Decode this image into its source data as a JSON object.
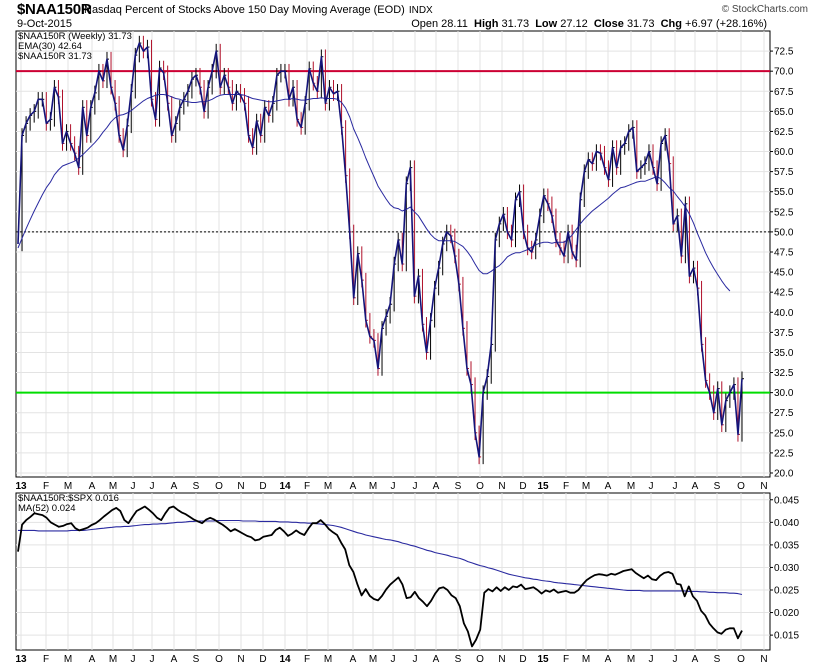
{
  "header": {
    "symbol": "$NAA150R",
    "description": "Nasdaq Percent of Stocks Above 150 Day Moving Average (EOD)",
    "exchange": "INDX",
    "date": "9-Oct-2015",
    "brand": "© StockCharts.com",
    "open_label": "Open",
    "open": "28.11",
    "high_label": "High",
    "high": "31.73",
    "low_label": "Low",
    "low": "27.12",
    "close_label": "Close",
    "close": "31.73",
    "chg_label": "Chg",
    "chg": "+6.97 (+28.16%)"
  },
  "colors": {
    "price_line": "#14147a",
    "ema_line": "#2a2aa0",
    "up_bar": "#000000",
    "down_bar": "#b0102a",
    "upper_line": "#cc0033",
    "lower_line": "#00dd00",
    "ratio_line": "#000000",
    "ma_line": "#2a2aa0",
    "grid": "#e3e3e3"
  },
  "chart_data": [
    {
      "type": "line",
      "legend": [
        {
          "label": "$NAA150R (Weekly) 31.73"
        },
        {
          "label": "EMA(30) 42.64"
        },
        {
          "label": "$NAA150R 31.73"
        }
      ],
      "y_ticks": [
        "72.5",
        "70.0",
        "67.5",
        "65.0",
        "62.5",
        "60.0",
        "57.5",
        "55.0",
        "52.5",
        "50.0",
        "47.5",
        "45.0",
        "42.5",
        "40.0",
        "37.5",
        "35.0",
        "32.5",
        "30.0",
        "27.5",
        "25.0",
        "22.5",
        "20.0"
      ],
      "ylim": [
        19.5,
        75
      ],
      "reference_lines": {
        "upper": 70,
        "middle": 50,
        "lower": 30
      },
      "x_ticks": [
        "13",
        "F",
        "M",
        "A",
        "M",
        "J",
        "J",
        "A",
        "S",
        "O",
        "N",
        "D",
        "14",
        "F",
        "M",
        "A",
        "M",
        "J",
        "J",
        "A",
        "S",
        "O",
        "N",
        "D",
        "15",
        "F",
        "M",
        "A",
        "M",
        "J",
        "J",
        "A",
        "S",
        "O",
        "N"
      ],
      "series": [
        {
          "name": "$NAA150R (Weekly)",
          "values": [
            48.5,
            62,
            63.5,
            64.5,
            65,
            66.5,
            66.5,
            63.5,
            64,
            68,
            66.8,
            61,
            62.5,
            61,
            59.8,
            58,
            65.5,
            62,
            65.5,
            67.3,
            70,
            68.8,
            71.5,
            68,
            66,
            62,
            60.2,
            63.2,
            67.5,
            72,
            73.5,
            72.5,
            73,
            66.5,
            64,
            70.4,
            69.8,
            66,
            62,
            63.5,
            65.5,
            66.5,
            67.5,
            69,
            69.5,
            68,
            65,
            68,
            70,
            72.5,
            68,
            69.5,
            68,
            66,
            67.5,
            67,
            66,
            62,
            60.5,
            63.8,
            62,
            65.5,
            64.5,
            66,
            69.5,
            70,
            70,
            66.5,
            68,
            64,
            63,
            66,
            70.3,
            68.5,
            67.5,
            71.8,
            66,
            68,
            67.2,
            67.5,
            63,
            57,
            50,
            41.8,
            47.3,
            44,
            39,
            37,
            36.5,
            33,
            38,
            39.5,
            41,
            46,
            49,
            46,
            56,
            58,
            42,
            44.5,
            38.5,
            35,
            39,
            43,
            45.5,
            48.5,
            50,
            49.5,
            47,
            43.5,
            38,
            33,
            31,
            25,
            22,
            30,
            32,
            36,
            49,
            51,
            52.2,
            50,
            49,
            54,
            55,
            50,
            48,
            47.5,
            49,
            52,
            54.5,
            53.5,
            52,
            49,
            48,
            47,
            50,
            47.5,
            46.5,
            54,
            57.5,
            59,
            58.5,
            60,
            59.8,
            58,
            56.5,
            60.5,
            58,
            60.5,
            61,
            62.5,
            63,
            57.5,
            58,
            58.5,
            60,
            58,
            56,
            61,
            62,
            58.5,
            51,
            52,
            47,
            53.5,
            44.5,
            45.5,
            43,
            36,
            31.5,
            30,
            27.5,
            30.5,
            26,
            29,
            30,
            31,
            24.8,
            31.73
          ]
        },
        {
          "name": "EMA(30)",
          "values": [
            48,
            49.2,
            50.4,
            51.5,
            52.6,
            53.6,
            54.6,
            55.5,
            56.2,
            57.1,
            57.7,
            58.2,
            58.4,
            58.6,
            58.8,
            59.2,
            59.6,
            60.1,
            60.6,
            61.1,
            61.7,
            62.4,
            63,
            63.7,
            64.2,
            64.5,
            64.6,
            64.8,
            65.1,
            65.5,
            65.9,
            66.3,
            66.6,
            66.8,
            67,
            67.1,
            67.1,
            67,
            66.8,
            66.6,
            66.5,
            66.3,
            66.2,
            66.1,
            66.1,
            66.2,
            66.2,
            66.3,
            66.5,
            66.8,
            67,
            67.1,
            67.1,
            67.1,
            67.1,
            67.1,
            67,
            66.8,
            66.6,
            66.5,
            66.4,
            66.3,
            66.2,
            66.2,
            66.3,
            66.4,
            66.5,
            66.5,
            66.6,
            66.5,
            66.4,
            66.4,
            66.5,
            66.6,
            66.6,
            66.7,
            66.6,
            66.6,
            66.6,
            66.5,
            66.1,
            65.4,
            64.3,
            62.8,
            61.7,
            60.5,
            59.2,
            58,
            56.9,
            55.7,
            54.9,
            54.1,
            53.4,
            53,
            52.9,
            52.6,
            52.8,
            53.1,
            52.5,
            52,
            51.2,
            50.4,
            49.7,
            49.2,
            48.9,
            48.9,
            48.9,
            48.9,
            48.8,
            48.5,
            48.2,
            47.6,
            46.9,
            46,
            45.2,
            44.8,
            44.8,
            45.1,
            45.5,
            45.8,
            46.3,
            46.9,
            47.2,
            47.4,
            47.4,
            47.6,
            47.8,
            48.1,
            48.4,
            48.6,
            48.7,
            48.7,
            48.6,
            48.7,
            48.7,
            48.7,
            49.1,
            49.6,
            50.3,
            51,
            51.6,
            52.1,
            52.6,
            53,
            53.4,
            53.8,
            54.2,
            54.7,
            55.1,
            55.5,
            55.6,
            55.8,
            56,
            56.2,
            56.3,
            56.3,
            56.5,
            56.7,
            56.9,
            56.6,
            56.1,
            55.5,
            55.1,
            54.4,
            53.8,
            53.1,
            52.2,
            51.1,
            49.8,
            48.6,
            47.4,
            46.4,
            45.5,
            44.7,
            43.9,
            43.2,
            42.64
          ]
        }
      ]
    },
    {
      "type": "line",
      "legend": [
        {
          "label": "$NAA150R:$SPX 0.016"
        },
        {
          "label": "MA(52) 0.024"
        }
      ],
      "y_ticks": [
        "0.045",
        "0.040",
        "0.035",
        "0.030",
        "0.025",
        "0.020",
        "0.015"
      ],
      "ylim": [
        0.0117,
        0.0465
      ],
      "x_ticks": [
        "13",
        "F",
        "M",
        "A",
        "M",
        "J",
        "J",
        "A",
        "S",
        "O",
        "N",
        "D",
        "14",
        "F",
        "M",
        "A",
        "M",
        "J",
        "J",
        "A",
        "S",
        "O",
        "N",
        "D",
        "15",
        "F",
        "M",
        "A",
        "M",
        "J",
        "J",
        "A",
        "S",
        "O",
        "N"
      ],
      "series": [
        {
          "name": "$NAA150R:$SPX",
          "values": [
            0.0335,
            0.0395,
            0.0405,
            0.0412,
            0.042,
            0.0418,
            0.0416,
            0.041,
            0.04,
            0.0395,
            0.039,
            0.0392,
            0.0396,
            0.0398,
            0.0387,
            0.0382,
            0.0385,
            0.0388,
            0.0394,
            0.0398,
            0.0405,
            0.0413,
            0.042,
            0.0427,
            0.0432,
            0.0425,
            0.0405,
            0.0398,
            0.0412,
            0.0425,
            0.043,
            0.0435,
            0.0428,
            0.042,
            0.041,
            0.0405,
            0.042,
            0.0432,
            0.0435,
            0.0428,
            0.0422,
            0.0418,
            0.0412,
            0.0406,
            0.0402,
            0.0398,
            0.0406,
            0.041,
            0.0406,
            0.04,
            0.0395,
            0.0388,
            0.038,
            0.0385,
            0.038,
            0.0375,
            0.037,
            0.0367,
            0.036,
            0.0362,
            0.0368,
            0.037,
            0.0372,
            0.0383,
            0.0388,
            0.038,
            0.037,
            0.0375,
            0.0382,
            0.0376,
            0.0372,
            0.0386,
            0.0398,
            0.0398,
            0.0405,
            0.0396,
            0.0385,
            0.0378,
            0.0372,
            0.0355,
            0.034,
            0.0305,
            0.029,
            0.0262,
            0.0238,
            0.0252,
            0.0237,
            0.023,
            0.0227,
            0.0237,
            0.0251,
            0.0262,
            0.027,
            0.0278,
            0.0262,
            0.0232,
            0.0234,
            0.0246,
            0.0232,
            0.0224,
            0.0214,
            0.0226,
            0.0242,
            0.0254,
            0.0256,
            0.025,
            0.0238,
            0.0232,
            0.0214,
            0.0176,
            0.0158,
            0.0125,
            0.014,
            0.0162,
            0.0244,
            0.0252,
            0.0247,
            0.0256,
            0.0248,
            0.0256,
            0.025,
            0.0258,
            0.0256,
            0.0262,
            0.0252,
            0.0254,
            0.0256,
            0.025,
            0.0242,
            0.0249,
            0.0246,
            0.0251,
            0.0244,
            0.0246,
            0.0248,
            0.0244,
            0.0244,
            0.025,
            0.0262,
            0.0272,
            0.0278,
            0.0283,
            0.0285,
            0.0284,
            0.0282,
            0.0286,
            0.0284,
            0.0288,
            0.0292,
            0.0294,
            0.0296,
            0.0288,
            0.0282,
            0.0276,
            0.0282,
            0.0274,
            0.0272,
            0.0282,
            0.0288,
            0.029,
            0.0286,
            0.0264,
            0.0262,
            0.0236,
            0.0258,
            0.0236,
            0.0226,
            0.0204,
            0.0194,
            0.0176,
            0.0165,
            0.0156,
            0.0153,
            0.0162,
            0.0165,
            0.0165,
            0.0143,
            0.016
          ]
        },
        {
          "name": "MA(52)",
          "values": [
            0.0382,
            0.0382,
            0.0382,
            0.0382,
            0.0382,
            0.0381,
            0.0381,
            0.0381,
            0.0381,
            0.0381,
            0.0381,
            0.0381,
            0.0381,
            0.0382,
            0.0382,
            0.0382,
            0.0382,
            0.0383,
            0.0384,
            0.0385,
            0.0386,
            0.0387,
            0.0388,
            0.0389,
            0.039,
            0.039,
            0.0391,
            0.0391,
            0.0392,
            0.0393,
            0.0394,
            0.0395,
            0.0395,
            0.0396,
            0.0396,
            0.0397,
            0.0397,
            0.0398,
            0.0399,
            0.04,
            0.04,
            0.0401,
            0.0402,
            0.0402,
            0.0403,
            0.0403,
            0.0403,
            0.0403,
            0.0403,
            0.0404,
            0.0404,
            0.0404,
            0.0404,
            0.0404,
            0.0404,
            0.0403,
            0.0403,
            0.0403,
            0.0403,
            0.0402,
            0.0402,
            0.0402,
            0.0402,
            0.0402,
            0.0401,
            0.0401,
            0.0401,
            0.04,
            0.04,
            0.0399,
            0.0399,
            0.0398,
            0.0398,
            0.0397,
            0.0396,
            0.0395,
            0.0394,
            0.0393,
            0.0391,
            0.0389,
            0.0386,
            0.0383,
            0.038,
            0.0377,
            0.0375,
            0.0372,
            0.037,
            0.0368,
            0.0366,
            0.0364,
            0.0362,
            0.0361,
            0.0359,
            0.0357,
            0.0354,
            0.0352,
            0.0349,
            0.0347,
            0.0344,
            0.0341,
            0.0338,
            0.0336,
            0.0333,
            0.0331,
            0.0329,
            0.0327,
            0.0324,
            0.0322,
            0.032,
            0.0317,
            0.0313,
            0.031,
            0.0307,
            0.0304,
            0.0302,
            0.0299,
            0.0297,
            0.0294,
            0.0291,
            0.0288,
            0.0285,
            0.0283,
            0.0281,
            0.0279,
            0.0277,
            0.0276,
            0.0274,
            0.0273,
            0.0271,
            0.027,
            0.0269,
            0.0267,
            0.0266,
            0.0265,
            0.0264,
            0.0263,
            0.0262,
            0.0261,
            0.026,
            0.0259,
            0.0258,
            0.0257,
            0.0256,
            0.0255,
            0.0254,
            0.0253,
            0.0252,
            0.0251,
            0.025,
            0.0249,
            0.0249,
            0.0249,
            0.0249,
            0.0248,
            0.0248,
            0.0248,
            0.0248,
            0.0248,
            0.0248,
            0.0248,
            0.0248,
            0.0248,
            0.0248,
            0.0248,
            0.0247,
            0.0247,
            0.0247,
            0.0246,
            0.0246,
            0.0245,
            0.0245,
            0.0244,
            0.0244,
            0.0244,
            0.0243,
            0.0243,
            0.0242,
            0.024
          ]
        }
      ]
    }
  ]
}
